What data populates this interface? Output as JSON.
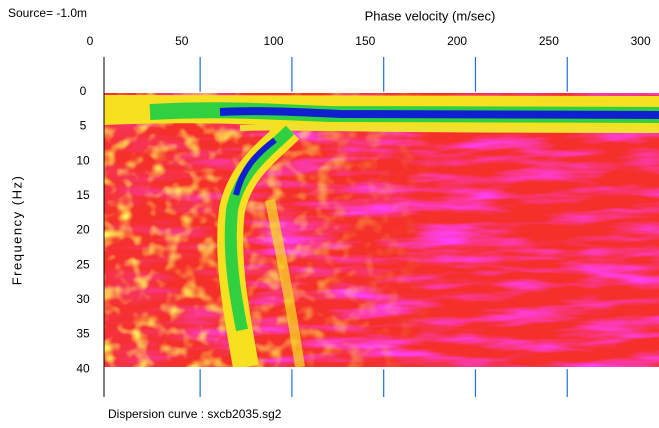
{
  "chart_data": {
    "type": "heatmap",
    "title": "Phase velocity (m/sec)",
    "source_label": "Source= -1.0m",
    "y_label": "Frequency (Hz)",
    "footer": "Dispersion curve : sxcb2035.sg2",
    "xlim": [
      0,
      310
    ],
    "xticks": [
      0,
      50,
      100,
      150,
      200,
      250,
      300
    ],
    "ylim": [
      -5,
      44
    ],
    "yticks": [
      0,
      5,
      10,
      15,
      20,
      25,
      30,
      35,
      40
    ],
    "y_inverted": true,
    "reference_lines": [
      60,
      110,
      160,
      210,
      260
    ],
    "reference_color": "#1e6fd9"
  }
}
